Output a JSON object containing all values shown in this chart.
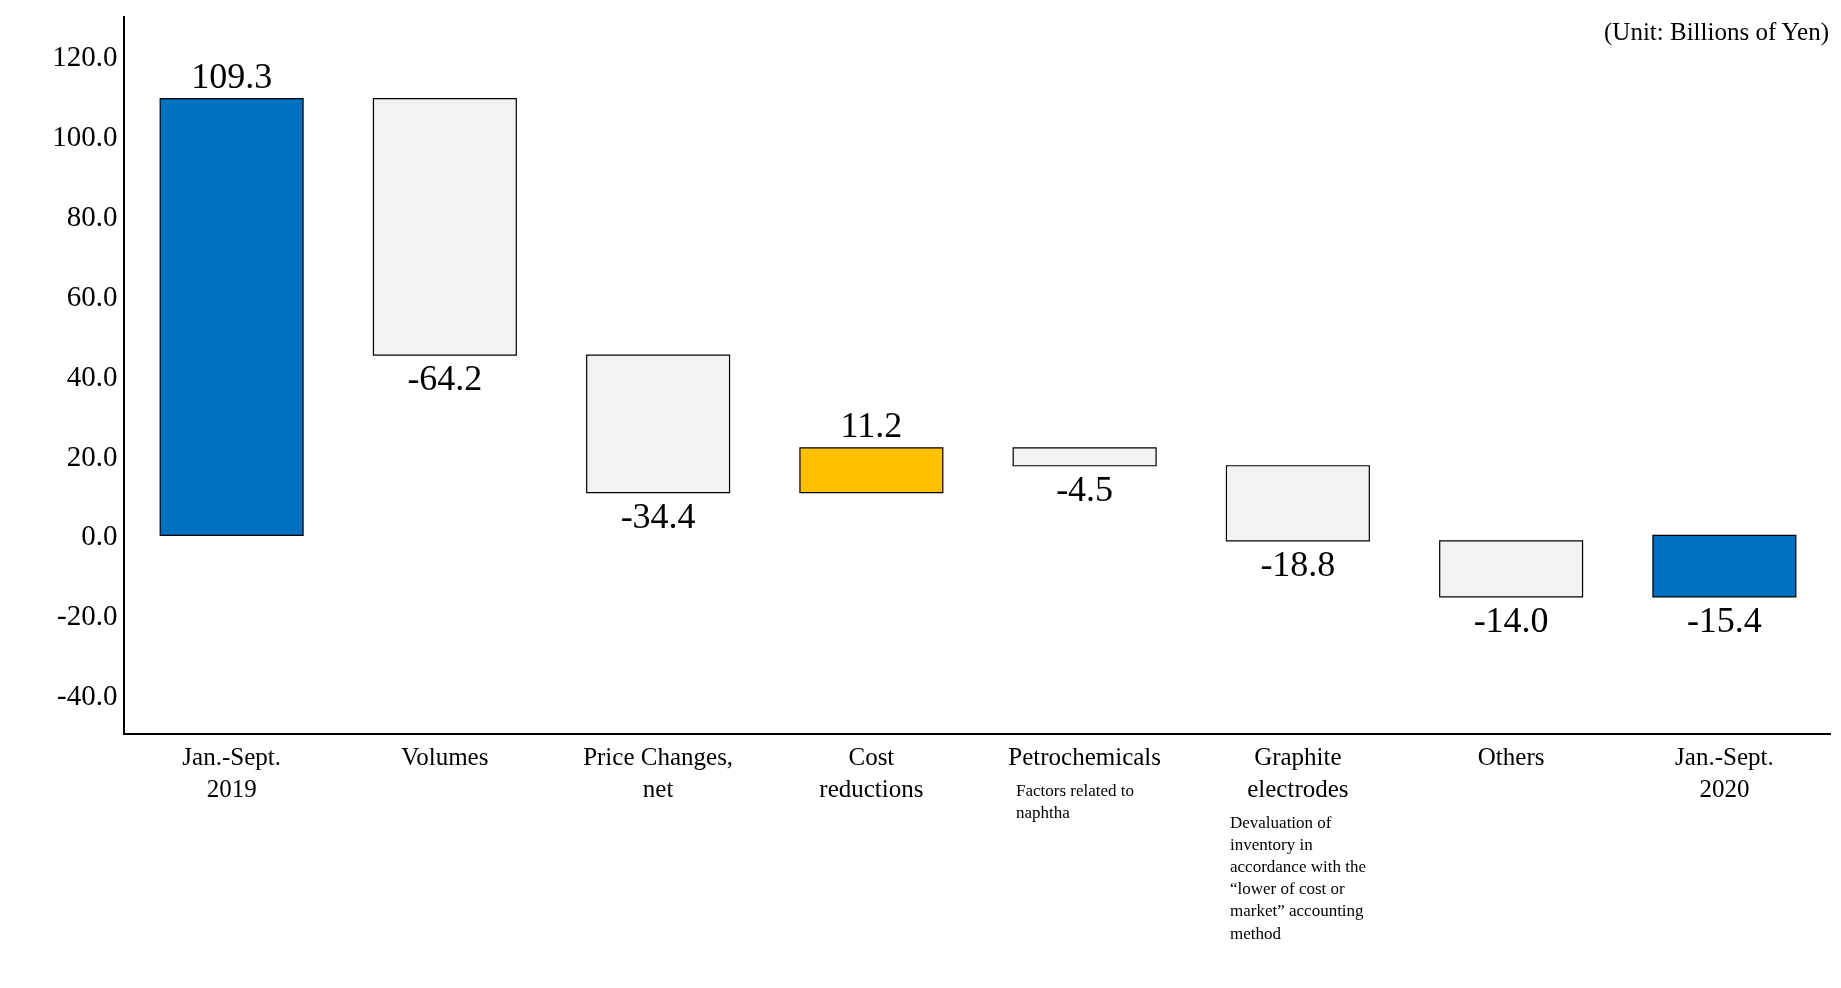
{
  "chart_data": {
    "type": "bar",
    "categories": [
      "Jan.-Sept.\n2019",
      "Volumes",
      "Price Changes,\nnet",
      "Cost\nreductions",
      "Petrochemicals",
      "Graphite\nelectrodes",
      "Others",
      "Jan.-Sept.\n2020"
    ],
    "values": [
      109.3,
      -64.2,
      -34.4,
      11.2,
      -4.5,
      -18.8,
      -14.0,
      -15.4
    ],
    "base": [
      0,
      109.3,
      45.1,
      10.7,
      21.9,
      17.4,
      -1.4,
      0
    ],
    "colors": [
      "#0070c0",
      "#f2f2f2",
      "#f2f2f2",
      "#ffc000",
      "#f2f2f2",
      "#f2f2f2",
      "#f2f2f2",
      "#0070c0"
    ],
    "value_labels": [
      "109.3",
      "-64.2",
      "-34.4",
      "11.2",
      "-4.5",
      "-18.8",
      "-14.0",
      "-15.4"
    ],
    "ylim": [
      -49.5,
      130
    ],
    "yticks": [
      {
        "value": -40,
        "label": "-40.0"
      },
      {
        "value": -20,
        "label": "-20.0"
      },
      {
        "value": 0,
        "label": "0.0"
      },
      {
        "value": 20,
        "label": "20.0"
      },
      {
        "value": 40,
        "label": "40.0"
      },
      {
        "value": 60,
        "label": "60.0"
      },
      {
        "value": 80,
        "label": "80.0"
      },
      {
        "value": 100,
        "label": "100.0"
      },
      {
        "value": 120,
        "label": "120.0"
      }
    ],
    "legend": false,
    "annotations": [
      "(Unit: Billions of Yen)",
      "Factors related to\nnaphtha",
      "Devaluation of\ninventory in\naccordance with the\n“lower of cost or\nmarket” accounting\nmethod"
    ]
  }
}
